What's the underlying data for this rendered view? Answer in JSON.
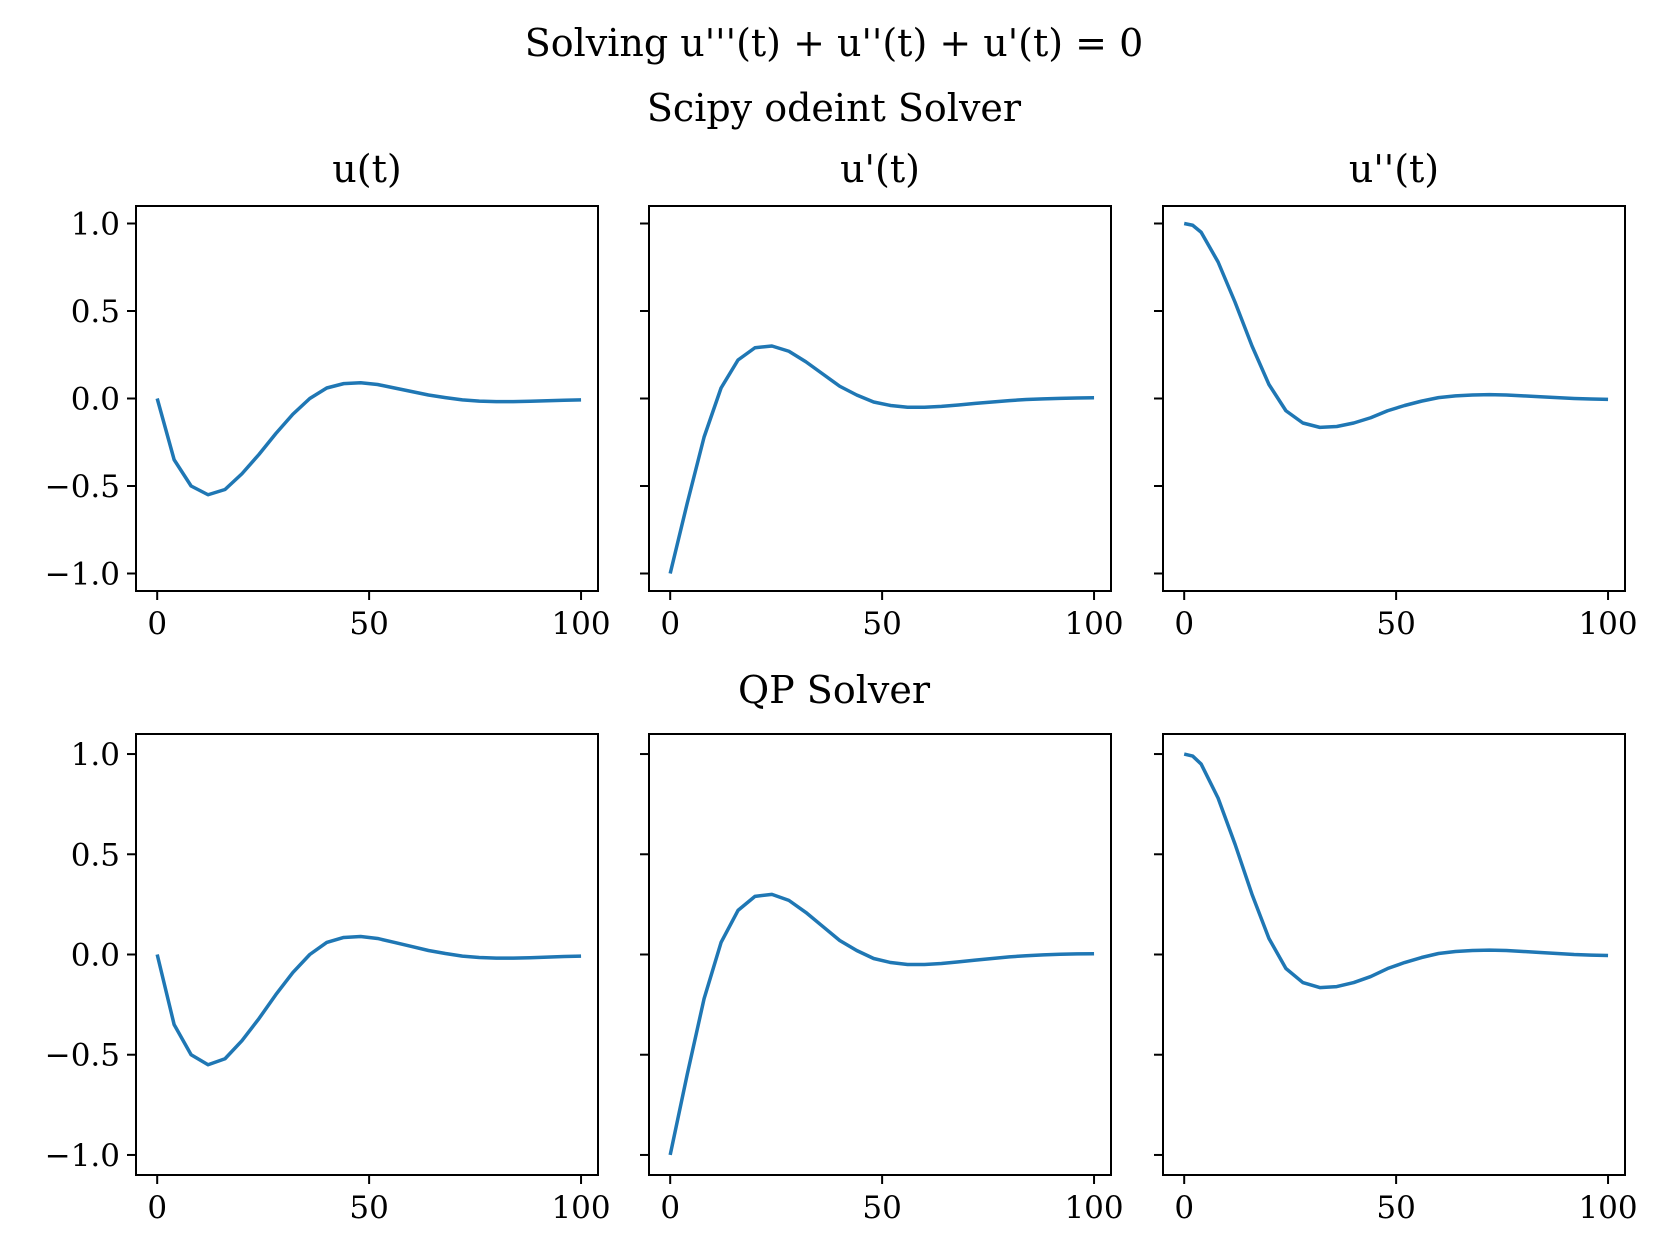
{
  "figure": {
    "suptitle": "Solving u'''(t) + u''(t) + u'(t) = 0",
    "row_titles": [
      "Scipy odeint Solver",
      "QP Solver"
    ],
    "column_titles": [
      "u(t)",
      "u'(t)",
      "u''(t)"
    ],
    "line_color": "#1f77b4"
  },
  "chart_data": [
    {
      "type": "line",
      "row": 0,
      "col": 0,
      "title": "u(t)",
      "xlabel": "",
      "ylabel": "",
      "xlim": [
        -5,
        104
      ],
      "ylim": [
        -1.1,
        1.1
      ],
      "xticks": [
        0,
        50,
        100
      ],
      "xtick_labels": [
        "0",
        "50",
        "100"
      ],
      "yticks": [
        1.0,
        0.5,
        0.0,
        -0.5,
        -1.0
      ],
      "ytick_labels": [
        "1.0",
        "0.5",
        "0.0",
        "−0.5",
        "−1.0"
      ],
      "show_yticklabels": true,
      "series": [
        {
          "name": "u(t)",
          "x": [
            0,
            4,
            8,
            12,
            16,
            20,
            24,
            28,
            32,
            36,
            40,
            44,
            48,
            52,
            56,
            60,
            64,
            68,
            72,
            76,
            80,
            84,
            88,
            92,
            96,
            100
          ],
          "y": [
            0.0,
            -0.35,
            -0.5,
            -0.55,
            -0.52,
            -0.43,
            -0.32,
            -0.2,
            -0.09,
            0.0,
            0.06,
            0.085,
            0.09,
            0.08,
            0.06,
            0.04,
            0.02,
            0.005,
            -0.008,
            -0.015,
            -0.018,
            -0.018,
            -0.016,
            -0.013,
            -0.01,
            -0.008
          ]
        }
      ]
    },
    {
      "type": "line",
      "row": 0,
      "col": 1,
      "title": "u'(t)",
      "xlabel": "",
      "ylabel": "",
      "xlim": [
        -5,
        104
      ],
      "ylim": [
        -1.1,
        1.1
      ],
      "xticks": [
        0,
        50,
        100
      ],
      "xtick_labels": [
        "0",
        "50",
        "100"
      ],
      "yticks": [
        1.0,
        0.5,
        0.0,
        -0.5,
        -1.0
      ],
      "ytick_labels": [
        "1.0",
        "0.5",
        "0.0",
        "−0.5",
        "−1.0"
      ],
      "show_yticklabels": false,
      "series": [
        {
          "name": "u'(t)",
          "x": [
            0,
            4,
            8,
            12,
            16,
            20,
            24,
            28,
            32,
            36,
            40,
            44,
            48,
            52,
            56,
            60,
            64,
            68,
            72,
            76,
            80,
            84,
            88,
            92,
            96,
            100
          ],
          "y": [
            -1.0,
            -0.6,
            -0.22,
            0.06,
            0.22,
            0.29,
            0.3,
            0.27,
            0.21,
            0.14,
            0.07,
            0.02,
            -0.02,
            -0.04,
            -0.05,
            -0.05,
            -0.045,
            -0.037,
            -0.028,
            -0.02,
            -0.012,
            -0.006,
            -0.002,
            0.001,
            0.003,
            0.004
          ]
        }
      ]
    },
    {
      "type": "line",
      "row": 0,
      "col": 2,
      "title": "u''(t)",
      "xlabel": "",
      "ylabel": "",
      "xlim": [
        -5,
        104
      ],
      "ylim": [
        -1.1,
        1.1
      ],
      "xticks": [
        0,
        50,
        100
      ],
      "xtick_labels": [
        "0",
        "50",
        "100"
      ],
      "yticks": [
        1.0,
        0.5,
        0.0,
        -0.5,
        -1.0
      ],
      "ytick_labels": [
        "1.0",
        "0.5",
        "0.0",
        "−0.5",
        "−1.0"
      ],
      "show_yticklabels": false,
      "series": [
        {
          "name": "u''(t)",
          "x": [
            0,
            2,
            4,
            8,
            12,
            16,
            20,
            24,
            28,
            32,
            36,
            40,
            44,
            48,
            52,
            56,
            60,
            64,
            68,
            72,
            76,
            80,
            84,
            88,
            92,
            96,
            100
          ],
          "y": [
            1.0,
            0.99,
            0.95,
            0.78,
            0.55,
            0.3,
            0.08,
            -0.07,
            -0.14,
            -0.165,
            -0.16,
            -0.14,
            -0.11,
            -0.07,
            -0.04,
            -0.015,
            0.005,
            0.015,
            0.02,
            0.022,
            0.02,
            0.015,
            0.01,
            0.005,
            0.0,
            -0.003,
            -0.005
          ]
        }
      ]
    },
    {
      "type": "line",
      "row": 1,
      "col": 0,
      "title": "",
      "xlabel": "",
      "ylabel": "",
      "xlim": [
        -5,
        104
      ],
      "ylim": [
        -1.1,
        1.1
      ],
      "xticks": [
        0,
        50,
        100
      ],
      "xtick_labels": [
        "0",
        "50",
        "100"
      ],
      "yticks": [
        1.0,
        0.5,
        0.0,
        -0.5,
        -1.0
      ],
      "ytick_labels": [
        "1.0",
        "0.5",
        "0.0",
        "−0.5",
        "−1.0"
      ],
      "show_yticklabels": true,
      "series": [
        {
          "name": "u(t)",
          "x": [
            0,
            4,
            8,
            12,
            16,
            20,
            24,
            28,
            32,
            36,
            40,
            44,
            48,
            52,
            56,
            60,
            64,
            68,
            72,
            76,
            80,
            84,
            88,
            92,
            96,
            100
          ],
          "y": [
            0.0,
            -0.35,
            -0.5,
            -0.55,
            -0.52,
            -0.43,
            -0.32,
            -0.2,
            -0.09,
            0.0,
            0.06,
            0.085,
            0.09,
            0.08,
            0.06,
            0.04,
            0.02,
            0.005,
            -0.008,
            -0.015,
            -0.018,
            -0.018,
            -0.016,
            -0.013,
            -0.01,
            -0.008
          ]
        }
      ]
    },
    {
      "type": "line",
      "row": 1,
      "col": 1,
      "title": "",
      "xlabel": "",
      "ylabel": "",
      "xlim": [
        -5,
        104
      ],
      "ylim": [
        -1.1,
        1.1
      ],
      "xticks": [
        0,
        50,
        100
      ],
      "xtick_labels": [
        "0",
        "50",
        "100"
      ],
      "yticks": [
        1.0,
        0.5,
        0.0,
        -0.5,
        -1.0
      ],
      "ytick_labels": [
        "1.0",
        "0.5",
        "0.0",
        "−0.5",
        "−1.0"
      ],
      "show_yticklabels": false,
      "series": [
        {
          "name": "u'(t)",
          "x": [
            0,
            4,
            8,
            12,
            16,
            20,
            24,
            28,
            32,
            36,
            40,
            44,
            48,
            52,
            56,
            60,
            64,
            68,
            72,
            76,
            80,
            84,
            88,
            92,
            96,
            100
          ],
          "y": [
            -1.0,
            -0.6,
            -0.22,
            0.06,
            0.22,
            0.29,
            0.3,
            0.27,
            0.21,
            0.14,
            0.07,
            0.02,
            -0.02,
            -0.04,
            -0.05,
            -0.05,
            -0.045,
            -0.037,
            -0.028,
            -0.02,
            -0.012,
            -0.006,
            -0.002,
            0.001,
            0.003,
            0.004
          ]
        }
      ]
    },
    {
      "type": "line",
      "row": 1,
      "col": 2,
      "title": "",
      "xlabel": "",
      "ylabel": "",
      "xlim": [
        -5,
        104
      ],
      "ylim": [
        -1.1,
        1.1
      ],
      "xticks": [
        0,
        50,
        100
      ],
      "xtick_labels": [
        "0",
        "50",
        "100"
      ],
      "yticks": [
        1.0,
        0.5,
        0.0,
        -0.5,
        -1.0
      ],
      "ytick_labels": [
        "1.0",
        "0.5",
        "0.0",
        "−0.5",
        "−1.0"
      ],
      "show_yticklabels": false,
      "series": [
        {
          "name": "u''(t)",
          "x": [
            0,
            2,
            4,
            8,
            12,
            16,
            20,
            24,
            28,
            32,
            36,
            40,
            44,
            48,
            52,
            56,
            60,
            64,
            68,
            72,
            76,
            80,
            84,
            88,
            92,
            96,
            100
          ],
          "y": [
            1.0,
            0.99,
            0.95,
            0.78,
            0.55,
            0.3,
            0.08,
            -0.07,
            -0.14,
            -0.165,
            -0.16,
            -0.14,
            -0.11,
            -0.07,
            -0.04,
            -0.015,
            0.005,
            0.015,
            0.02,
            0.022,
            0.02,
            0.015,
            0.01,
            0.005,
            0.0,
            -0.003,
            -0.005
          ]
        }
      ]
    }
  ]
}
